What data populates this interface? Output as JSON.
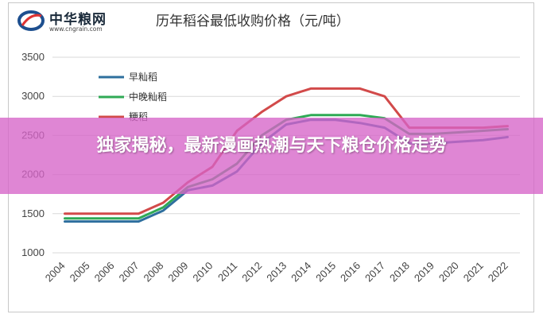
{
  "logo": {
    "name": "中华粮网",
    "url": "www.cngrain.com"
  },
  "banner": {
    "text": "独家揭秘，最新漫画热潮与天下粮仓价格走势"
  },
  "chart_data": {
    "type": "line",
    "title": "历年稻谷最低收购价格（元/吨）",
    "x": [
      2004,
      2005,
      2006,
      2007,
      2008,
      2009,
      2010,
      2011,
      2012,
      2013,
      2014,
      2015,
      2016,
      2017,
      2018,
      2019,
      2020,
      2021,
      2022
    ],
    "ylim": [
      1000,
      3500
    ],
    "yticks": [
      1000,
      1500,
      2000,
      2500,
      3000,
      3500
    ],
    "grid": true,
    "legend_position": "top-left",
    "series": [
      {
        "name": "早籼稻",
        "color": "#2e6f9e",
        "values": [
          1400,
          1400,
          1400,
          1400,
          1540,
          1800,
          1860,
          2040,
          2400,
          2640,
          2700,
          2700,
          2660,
          2600,
          2400,
          2400,
          2420,
          2440,
          2480
        ]
      },
      {
        "name": "中晚籼稻",
        "color": "#2faa55",
        "values": [
          1440,
          1440,
          1440,
          1440,
          1580,
          1840,
          1940,
          2140,
          2500,
          2700,
          2760,
          2760,
          2760,
          2720,
          2520,
          2520,
          2540,
          2560,
          2580
        ]
      },
      {
        "name": "粳稻",
        "color": "#d24a4a",
        "values": [
          1500,
          1500,
          1500,
          1500,
          1640,
          1900,
          2100,
          2560,
          2800,
          3000,
          3100,
          3100,
          3100,
          3000,
          2600,
          2600,
          2600,
          2600,
          2620
        ]
      }
    ]
  }
}
